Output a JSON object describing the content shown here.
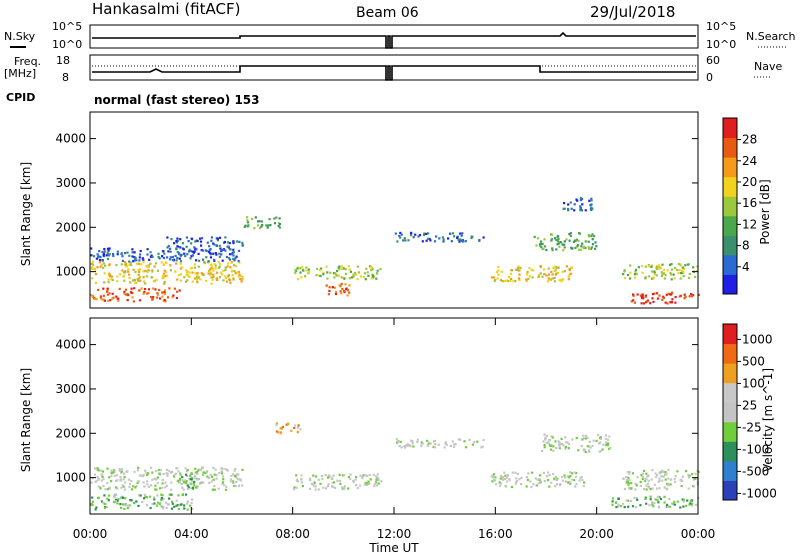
{
  "header": {
    "station": "Hankasalmi (fitACF)",
    "beam": "Beam 06",
    "date": "29/Jul/2018"
  },
  "nsky_panel": {
    "left_label": "N.Sky",
    "left_ticks": [
      "10^5",
      "10^0"
    ],
    "right_label": "N.Search",
    "right_ticks": [
      "10^5",
      "10^0"
    ]
  },
  "freq_panel": {
    "left_label_1": "Freq.",
    "left_label_2": "[MHz]",
    "left_ticks": [
      "18",
      "8"
    ],
    "right_label": "Nave",
    "right_ticks": [
      "60",
      "0"
    ]
  },
  "cpid": {
    "label": "CPID",
    "text": "normal (fast stereo) 153"
  },
  "colors": {
    "power": [
      "#1f1fe6",
      "#2a6ad2",
      "#3c8f6e",
      "#4aa84a",
      "#9cc93b",
      "#f2d21e",
      "#f59a1a",
      "#e85a12",
      "#e01e1e"
    ],
    "velocity": [
      "#2a3fb8",
      "#2e7fd0",
      "#2f8f5a",
      "#6fce3a",
      "#c4c4c4",
      "#c8c8c8",
      "#f0a020",
      "#ef6a12",
      "#e01e1e"
    ]
  },
  "chart_data": [
    {
      "type": "heatmap",
      "panel": "power",
      "ylabel": "Slant Range [km]",
      "y_ticks": [
        "1000",
        "2000",
        "3000",
        "4000"
      ],
      "ylim": [
        180,
        4600
      ],
      "xlim_hours": [
        0,
        24
      ],
      "colorbar_label": "Power [dB]",
      "colorbar_ticks": [
        "4",
        "8",
        "12",
        "16",
        "20",
        "24",
        "28"
      ],
      "blobs": [
        {
          "t0": 0.0,
          "t1": 6.0,
          "r0": 750,
          "r1": 1250,
          "level": 5
        },
        {
          "t0": 0.0,
          "t1": 6.0,
          "r0": 1250,
          "r1": 1550,
          "level": 1
        },
        {
          "t0": 0.0,
          "t1": 3.5,
          "r0": 350,
          "r1": 650,
          "level": 7
        },
        {
          "t0": 3.0,
          "t1": 6.0,
          "r0": 1500,
          "r1": 1800,
          "level": 1
        },
        {
          "t0": 6.0,
          "t1": 7.5,
          "r0": 2000,
          "r1": 2250,
          "level": 3
        },
        {
          "t0": 8.0,
          "t1": 11.5,
          "r0": 850,
          "r1": 1150,
          "level": 4
        },
        {
          "t0": 9.3,
          "t1": 10.3,
          "r0": 450,
          "r1": 750,
          "level": 7
        },
        {
          "t0": 12.0,
          "t1": 15.5,
          "r0": 1700,
          "r1": 1900,
          "level": 1
        },
        {
          "t0": 15.8,
          "t1": 19.0,
          "r0": 800,
          "r1": 1150,
          "level": 5
        },
        {
          "t0": 17.5,
          "t1": 20.0,
          "r0": 1500,
          "r1": 1900,
          "level": 3
        },
        {
          "t0": 18.5,
          "t1": 19.8,
          "r0": 2400,
          "r1": 2700,
          "level": 1
        },
        {
          "t0": 21.0,
          "t1": 24.0,
          "r0": 850,
          "r1": 1200,
          "level": 4
        },
        {
          "t0": 21.3,
          "t1": 24.0,
          "r0": 300,
          "r1": 550,
          "level": 8
        }
      ]
    },
    {
      "type": "heatmap",
      "panel": "velocity",
      "ylabel": "Slant Range [km]",
      "y_ticks": [
        "1000",
        "2000",
        "3000",
        "4000"
      ],
      "ylim": [
        180,
        4600
      ],
      "xlim_hours": [
        0,
        24
      ],
      "xlabel": "Time UT",
      "x_ticks": [
        "00:00",
        "04:00",
        "08:00",
        "12:00",
        "16:00",
        "20:00",
        "00:00"
      ],
      "colorbar_label": "Velocity [m s^-1]",
      "colorbar_ticks": [
        "1000",
        "500",
        "100",
        "25",
        "-25",
        "-100",
        "-500",
        "-1000"
      ],
      "blobs": [
        {
          "t0": 0.0,
          "t1": 6.0,
          "r0": 750,
          "r1": 1250,
          "level": 4
        },
        {
          "t0": 0.0,
          "t1": 4.0,
          "r0": 300,
          "r1": 650,
          "level": 3
        },
        {
          "t0": 3.5,
          "t1": 4.3,
          "r0": 750,
          "r1": 1100,
          "level": 3
        },
        {
          "t0": 7.3,
          "t1": 8.3,
          "r0": 2000,
          "r1": 2250,
          "level": 6
        },
        {
          "t0": 8.0,
          "t1": 11.5,
          "r0": 750,
          "r1": 1100,
          "level": 4
        },
        {
          "t0": 12.0,
          "t1": 15.5,
          "r0": 1700,
          "r1": 1900,
          "level": 4
        },
        {
          "t0": 15.8,
          "t1": 19.5,
          "r0": 800,
          "r1": 1150,
          "level": 4
        },
        {
          "t0": 17.8,
          "t1": 20.5,
          "r0": 1600,
          "r1": 2000,
          "level": 4
        },
        {
          "t0": 21.0,
          "t1": 24.0,
          "r0": 750,
          "r1": 1200,
          "level": 4
        },
        {
          "t0": 20.5,
          "t1": 24.0,
          "r0": 350,
          "r1": 600,
          "level": 3
        }
      ]
    }
  ]
}
